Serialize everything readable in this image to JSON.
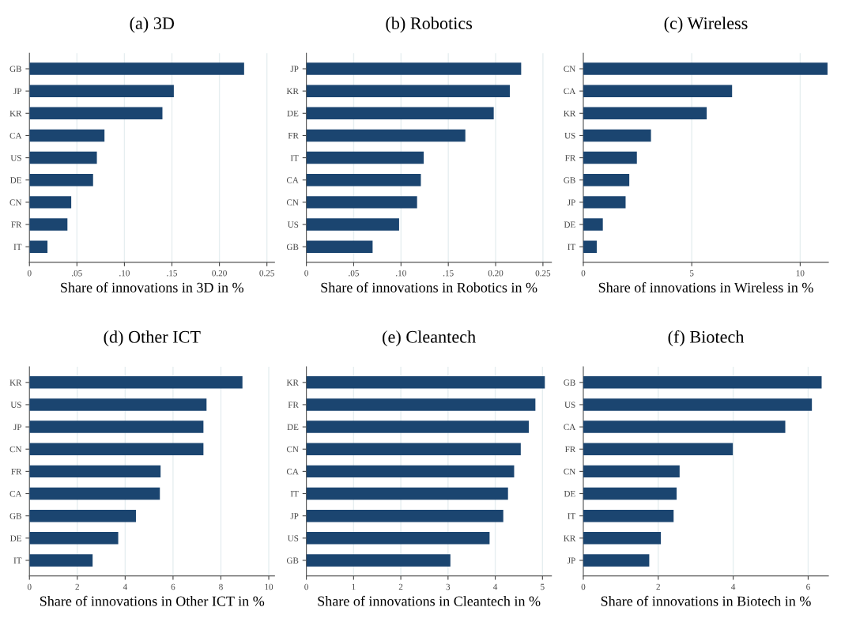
{
  "chart_data": [
    {
      "type": "bar",
      "orientation": "horizontal",
      "title": "(a) 3D",
      "xlabel": "Share of innovations in 3D in %",
      "categories": [
        "GB",
        "JP",
        "KR",
        "CA",
        "US",
        "DE",
        "CN",
        "FR",
        "IT"
      ],
      "values": [
        0.226,
        0.152,
        0.14,
        0.079,
        0.071,
        0.067,
        0.044,
        0.04,
        0.019
      ],
      "color": "#1b4570",
      "xlim": [
        0,
        0.258
      ],
      "xticks": [
        0,
        {
          "value": 0.05,
          "label": ".05"
        },
        {
          "value": 0.1,
          "label": ".10"
        },
        {
          "value": 0.15,
          "label": ".15"
        },
        {
          "value": 0.2,
          "label": "0.20"
        },
        {
          "value": 0.25,
          "label": "0.25"
        }
      ],
      "grid": "x"
    },
    {
      "type": "bar",
      "orientation": "horizontal",
      "title": "(b) Robotics",
      "xlabel": "Share of innovations in Robotics in %",
      "categories": [
        "JP",
        "KR",
        "DE",
        "FR",
        "IT",
        "CA",
        "CN",
        "US",
        "GB"
      ],
      "values": [
        0.227,
        0.215,
        0.198,
        0.168,
        0.124,
        0.121,
        0.117,
        0.098,
        0.07
      ],
      "color": "#1b4570",
      "xlim": [
        0,
        0.259
      ],
      "xticks": [
        0,
        {
          "value": 0.05,
          "label": ".05"
        },
        {
          "value": 0.1,
          "label": ".10"
        },
        {
          "value": 0.15,
          "label": ".15"
        },
        {
          "value": 0.2,
          "label": "0.20"
        },
        {
          "value": 0.25,
          "label": "0.25"
        }
      ],
      "grid": "x"
    },
    {
      "type": "bar",
      "orientation": "horizontal",
      "title": "(c) Wireless",
      "xlabel": "Share of innovations in Wireless in %",
      "categories": [
        "CN",
        "CA",
        "KR",
        "US",
        "FR",
        "GB",
        "JP",
        "DE",
        "IT"
      ],
      "values": [
        11.26,
        6.86,
        5.69,
        3.12,
        2.47,
        2.12,
        1.95,
        0.9,
        0.62
      ],
      "color": "#1b4570",
      "xlim": [
        0,
        11.3
      ],
      "xticks": [
        0,
        5,
        10
      ],
      "grid": "x"
    },
    {
      "type": "bar",
      "orientation": "horizontal",
      "title": "(d) Other ICT",
      "xlabel": "Share of innovations in Other ICT in %",
      "categories": [
        "KR",
        "US",
        "JP",
        "CN",
        "FR",
        "CA",
        "GB",
        "DE",
        "IT"
      ],
      "values": [
        8.9,
        7.4,
        7.27,
        7.27,
        5.48,
        5.45,
        4.45,
        3.71,
        2.64
      ],
      "color": "#1b4570",
      "xlim": [
        0,
        10.24
      ],
      "xticks": [
        0,
        2,
        4,
        6,
        8,
        10
      ],
      "grid": "x"
    },
    {
      "type": "bar",
      "orientation": "horizontal",
      "title": "(e) Cleantech",
      "xlabel": "Share of innovations in Cleantech in %",
      "categories": [
        "KR",
        "FR",
        "DE",
        "CN",
        "CA",
        "IT",
        "JP",
        "US",
        "GB"
      ],
      "values": [
        5.05,
        4.85,
        4.71,
        4.54,
        4.4,
        4.27,
        4.17,
        3.88,
        3.05
      ],
      "color": "#1b4570",
      "xlim": [
        0,
        5.19
      ],
      "xticks": [
        0,
        1,
        2,
        3,
        4,
        5
      ],
      "grid": "x"
    },
    {
      "type": "bar",
      "orientation": "horizontal",
      "title": "(f) Biotech",
      "xlabel": "Share of innovations in Biotech in %",
      "categories": [
        "GB",
        "US",
        "CA",
        "FR",
        "CN",
        "DE",
        "IT",
        "KR",
        "JP"
      ],
      "values": [
        6.36,
        6.1,
        5.39,
        3.99,
        2.57,
        2.49,
        2.41,
        2.07,
        1.76
      ],
      "color": "#1b4570",
      "xlim": [
        0,
        6.54
      ],
      "xticks": [
        0,
        2,
        4,
        6
      ],
      "grid": "x"
    }
  ]
}
